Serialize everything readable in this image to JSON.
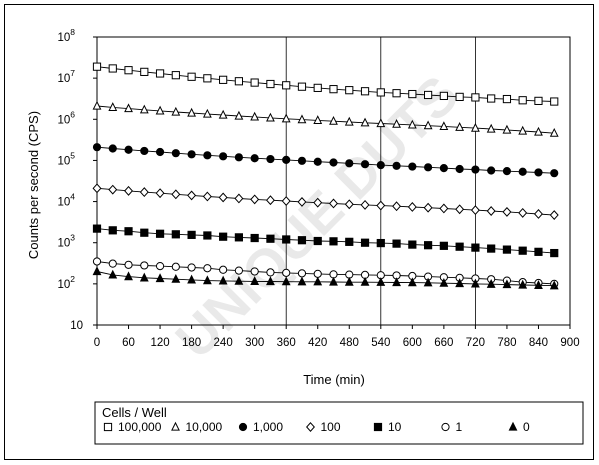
{
  "watermark": "UNIQUE DUTS",
  "chart_data": {
    "type": "scatter",
    "title": "",
    "xlabel": "Time (min)",
    "ylabel": "Counts per second (CPS)",
    "xlim": [
      0,
      900
    ],
    "ylim": [
      10,
      100000000
    ],
    "yscale": "log",
    "x_ticks": [
      0,
      60,
      120,
      180,
      240,
      300,
      360,
      420,
      480,
      540,
      600,
      660,
      720,
      780,
      840,
      900
    ],
    "x_tick_labels": [
      "0",
      "60",
      "120",
      "180",
      "240",
      "300",
      "360",
      "420",
      "480",
      "540",
      "600",
      "660",
      "720",
      "780",
      "840",
      "900"
    ],
    "y_ticks": [
      10,
      100,
      1000,
      10000,
      100000,
      1000000,
      10000000,
      100000000
    ],
    "y_tick_labels": [
      {
        "base": "10",
        "exp": ""
      },
      {
        "base": "10",
        "exp": "2"
      },
      {
        "base": "10",
        "exp": "3"
      },
      {
        "base": "10",
        "exp": "4"
      },
      {
        "base": "10",
        "exp": "5"
      },
      {
        "base": "10",
        "exp": "6"
      },
      {
        "base": "10",
        "exp": "7"
      },
      {
        "base": "10",
        "exp": "8"
      }
    ],
    "grid": {
      "vertical_at": [
        360,
        540,
        720
      ],
      "horizontal": false
    },
    "legend": {
      "title": "Cells / Well",
      "placement": "bottom",
      "entries": [
        {
          "label": "100,000",
          "marker": "square-open"
        },
        {
          "label": "10,000",
          "marker": "triangle-open"
        },
        {
          "label": "1,000",
          "marker": "circle-filled"
        },
        {
          "label": "100",
          "marker": "diamond-open"
        },
        {
          "label": "10",
          "marker": "square-filled"
        },
        {
          "label": "1",
          "marker": "circle-open"
        },
        {
          "label": "0",
          "marker": "triangle-filled"
        }
      ]
    },
    "x": [
      0,
      30,
      60,
      90,
      120,
      150,
      180,
      210,
      240,
      270,
      300,
      330,
      360,
      390,
      420,
      450,
      480,
      510,
      540,
      570,
      600,
      630,
      660,
      690,
      720,
      750,
      780,
      810,
      840,
      870
    ],
    "series": [
      {
        "name": "100,000",
        "marker": "square-open",
        "values": [
          19000000,
          17200000,
          15600000,
          14200000,
          13000000,
          11800000,
          10800000,
          9900000,
          9100000,
          8400000,
          7800000,
          7200000,
          6700000,
          6200000,
          5800000,
          5400000,
          5100000,
          4800000,
          4500000,
          4300000,
          4100000,
          3900000,
          3700000,
          3500000,
          3400000,
          3200000,
          3100000,
          2900000,
          2800000,
          2700000
        ]
      },
      {
        "name": "10,000",
        "marker": "triangle-open",
        "values": [
          2100000,
          1950000,
          1820000,
          1700000,
          1600000,
          1500000,
          1420000,
          1340000,
          1270000,
          1200000,
          1140000,
          1080000,
          1030000,
          980000,
          940000,
          900000,
          860000,
          820000,
          790000,
          760000,
          730000,
          700000,
          670000,
          640000,
          610000,
          580000,
          550000,
          520000,
          490000,
          460000
        ]
      },
      {
        "name": "1,000",
        "marker": "circle-filled",
        "values": [
          210000,
          195000,
          182000,
          170000,
          160000,
          150000,
          141000,
          133000,
          126000,
          119000,
          113000,
          108000,
          103000,
          98000,
          93000,
          89000,
          85000,
          81000,
          77000,
          74000,
          71000,
          68000,
          65000,
          62000,
          60000,
          57000,
          55000,
          53000,
          51000,
          49000
        ]
      },
      {
        "name": "100",
        "marker": "diamond-open",
        "values": [
          21000,
          19500,
          18200,
          17000,
          16000,
          15000,
          14100,
          13300,
          12600,
          11900,
          11300,
          10800,
          10300,
          9800,
          9400,
          9000,
          8600,
          8300,
          8000,
          7700,
          7400,
          7100,
          6800,
          6500,
          6200,
          5900,
          5600,
          5300,
          5000,
          4700
        ]
      },
      {
        "name": "10",
        "marker": "square-filled",
        "values": [
          2200,
          2000,
          1900,
          1750,
          1650,
          1600,
          1550,
          1500,
          1400,
          1350,
          1300,
          1250,
          1200,
          1150,
          1100,
          1080,
          1050,
          1000,
          980,
          950,
          900,
          870,
          840,
          800,
          760,
          720,
          680,
          640,
          600,
          560
        ]
      },
      {
        "name": "1",
        "marker": "circle-open",
        "values": [
          350,
          310,
          290,
          280,
          270,
          260,
          250,
          240,
          220,
          210,
          200,
          190,
          185,
          180,
          175,
          170,
          168,
          165,
          162,
          160,
          155,
          150,
          145,
          140,
          135,
          130,
          120,
          110,
          105,
          100
        ]
      },
      {
        "name": "0",
        "marker": "triangle-filled",
        "values": [
          200,
          165,
          150,
          140,
          135,
          130,
          125,
          120,
          118,
          116,
          115,
          114,
          113,
          112,
          112,
          111,
          110,
          110,
          109,
          108,
          107,
          106,
          104,
          102,
          100,
          98,
          96,
          94,
          92,
          90
        ]
      }
    ]
  }
}
